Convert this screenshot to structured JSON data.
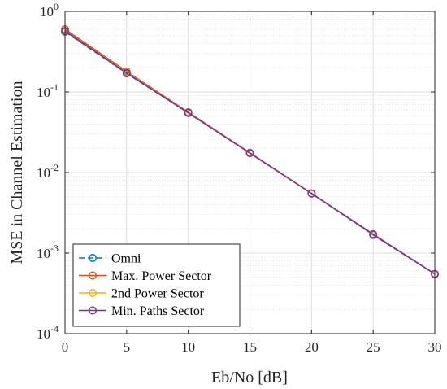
{
  "chart_data": {
    "type": "line",
    "xlabel": "Eb/No [dB]",
    "ylabel": "MSE in Channel Estimation",
    "xlim": [
      0,
      30
    ],
    "ylim": [
      0.0001,
      1
    ],
    "yscale": "log",
    "grid": true,
    "minor_grid": true,
    "x_ticks": [
      0,
      5,
      10,
      15,
      20,
      25,
      30
    ],
    "x_tick_labels": [
      "0",
      "5",
      "10",
      "15",
      "20",
      "25",
      "30"
    ],
    "y_ticks": [
      1,
      0.1,
      0.01,
      0.001,
      0.0001
    ],
    "y_tick_base": "10",
    "y_tick_exponents": [
      "0",
      "-1",
      "-2",
      "-3",
      "-4"
    ],
    "legend_position": "bottom-left",
    "x": [
      0,
      5,
      10,
      15,
      20,
      25,
      30
    ],
    "series": [
      {
        "name": "Omni",
        "color": "#0072BD",
        "dash": true,
        "marker": "circle",
        "values": [
          0.56,
          0.17,
          0.055,
          0.0175,
          0.0055,
          0.00168,
          0.00055
        ]
      },
      {
        "name": "Max. Power Sector",
        "color": "#D95319",
        "dash": false,
        "marker": "circle",
        "values": [
          0.6,
          0.18,
          0.056,
          0.0176,
          0.0055,
          0.00172,
          0.00055
        ]
      },
      {
        "name": "2nd Power Sector",
        "color": "#EDB120",
        "dash": false,
        "marker": "circle",
        "values": [
          0.57,
          0.175,
          0.055,
          0.0175,
          0.0055,
          0.0017,
          0.00055
        ]
      },
      {
        "name": "Min. Paths Sector",
        "color": "#7E2F8E",
        "dash": false,
        "marker": "circle",
        "values": [
          0.57,
          0.172,
          0.055,
          0.0174,
          0.0055,
          0.0017,
          0.00055
        ]
      }
    ]
  }
}
